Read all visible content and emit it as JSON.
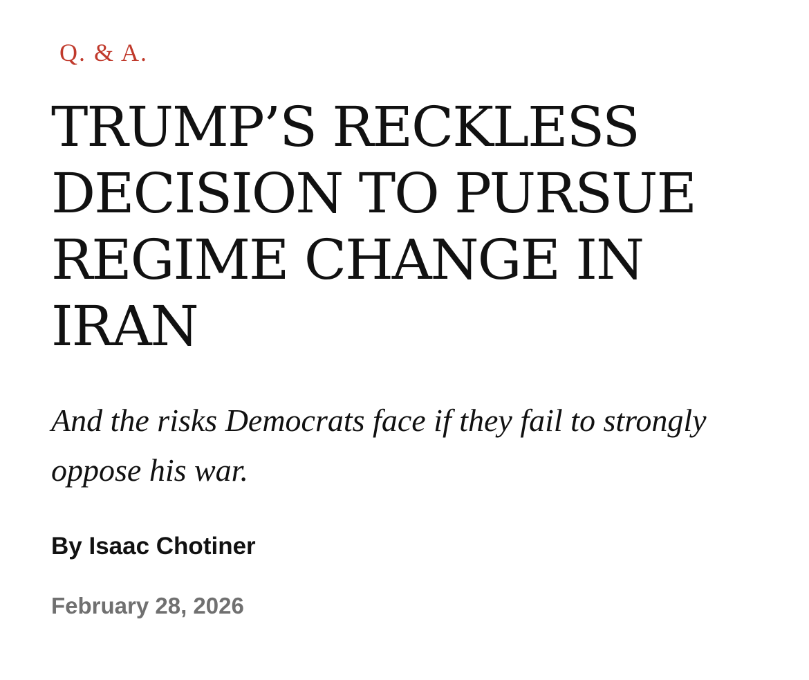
{
  "article": {
    "rubric": "Q. & A.",
    "headline": "Trump’s Reckless Decision to Pursue Regime Change in Iran",
    "dek": "And the risks Democrats face if they fail to strongly oppose his war.",
    "byline_prefix": "By ",
    "author": "Isaac Chotiner",
    "date": "February 28, 2026"
  },
  "colors": {
    "rubric": "#c0392b",
    "text": "#111111",
    "date": "#707070",
    "background": "#ffffff"
  }
}
